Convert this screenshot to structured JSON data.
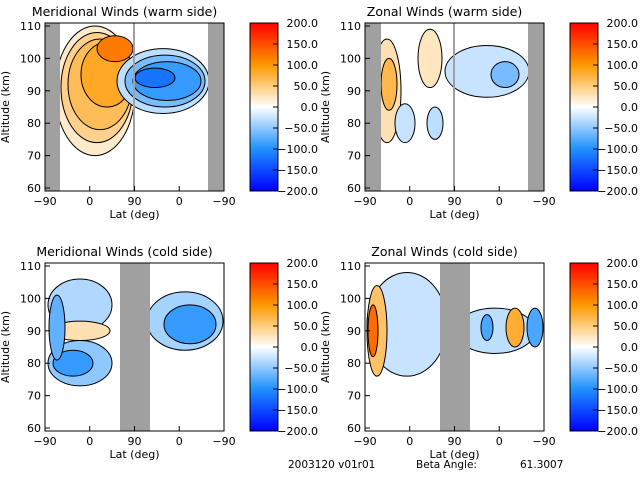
{
  "chart_data": [
    {
      "type": "heatmap",
      "title": "Meridional Winds (warm side)",
      "xlabel": "Lat (deg)",
      "ylabel": "Altitude (km)",
      "xticks": [
        "-90",
        "0",
        "90",
        "0",
        "-90"
      ],
      "yticks": [
        "60",
        "70",
        "80",
        "90",
        "100",
        "110"
      ],
      "ylim": [
        60,
        110
      ],
      "colorbar": {
        "range": [
          -200,
          200
        ],
        "ticks": [
          "200.0",
          "150.0",
          "100.0",
          "50.0",
          "0.0",
          "-50.0",
          "-100.0",
          "-150.0",
          "-200.0"
        ]
      },
      "summary": "positive (orange) 50-150 on ascending half, peak near 100-105 km; negative (blue) -50 to -150 on descending half 83-103 km"
    },
    {
      "type": "heatmap",
      "title": "Zonal Winds (warm side)",
      "xlabel": "Lat (deg)",
      "ylabel": "Altitude (km)",
      "xticks": [
        "-90",
        "0",
        "90",
        "0",
        "-90"
      ],
      "yticks": [
        "60",
        "70",
        "80",
        "90",
        "100",
        "110"
      ],
      "ylim": [
        60,
        110
      ],
      "colorbar": {
        "range": [
          -200,
          200
        ],
        "ticks": [
          "200.0",
          "150.0",
          "100.0",
          "50.0",
          "0.0",
          "-50.0",
          "-100.0",
          "-150.0",
          "-200.0"
        ]
      },
      "summary": "weak mixed winds, mostly -50 to 50"
    },
    {
      "type": "heatmap",
      "title": "Meridional Winds (cold side)",
      "xlabel": "Lat (deg)",
      "ylabel": "Altitude (km)",
      "xticks": [
        "-90",
        "0",
        "90",
        "0",
        "-90"
      ],
      "yticks": [
        "60",
        "70",
        "80",
        "90",
        "100",
        "110"
      ],
      "ylim": [
        60,
        110
      ],
      "colorbar": {
        "range": [
          -200,
          200
        ],
        "ticks": [
          "200.0",
          "150.0",
          "100.0",
          "50.0",
          "0.0",
          "-50.0",
          "-100.0",
          "-150.0",
          "-200.0"
        ]
      },
      "summary": "alternating blue/orange layers; strong negative near 80 km and 92 km"
    },
    {
      "type": "heatmap",
      "title": "Zonal Winds (cold side)",
      "xlabel": "Lat (deg)",
      "ylabel": "Altitude (km)",
      "xticks": [
        "-90",
        "0",
        "90",
        "0",
        "-90"
      ],
      "yticks": [
        "60",
        "70",
        "80",
        "90",
        "100",
        "110"
      ],
      "ylim": [
        60,
        110
      ],
      "colorbar": {
        "range": [
          -200,
          200
        ],
        "ticks": [
          "200.0",
          "150.0",
          "100.0",
          "50.0",
          "0.0",
          "-50.0",
          "-100.0",
          "-150.0",
          "-200.0"
        ]
      },
      "summary": "orange-red near -90 at 90 km, blue weak elsewhere, alternating cells on descending half"
    }
  ],
  "footer": {
    "date_version": "2003120 v01r01",
    "beta_label": "Beta Angle:",
    "beta_value": "61.3007"
  },
  "colors": {
    "red": "#ff0000",
    "orange": "#ff9900",
    "white": "#ffffff",
    "lightblue": "#1e90ff",
    "blue": "#0000ff",
    "gap": "#a0a0a0"
  }
}
